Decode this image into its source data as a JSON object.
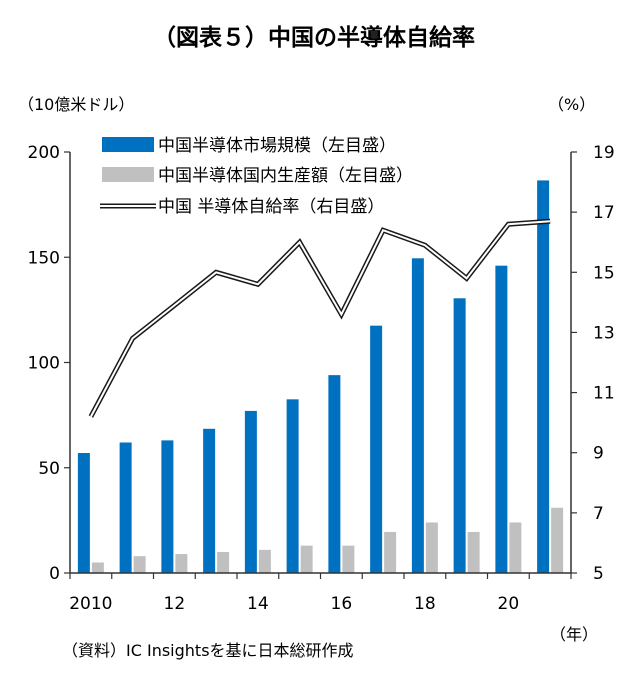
{
  "chart_data": {
    "type": "bar",
    "title": "（図表５）中国の半導体自給率",
    "left_unit": "（10億米ドル）",
    "right_unit": "（%）",
    "x_unit": "（年）",
    "source": "（資料）IC Insightsを基に日本総研作成",
    "years": [
      2010,
      2011,
      2012,
      2013,
      2014,
      2015,
      2016,
      2017,
      2018,
      2019,
      2020,
      2021
    ],
    "x_tick_labels": [
      {
        "year": 2010,
        "label": "2010"
      },
      {
        "year": 2012,
        "label": "12"
      },
      {
        "year": 2014,
        "label": "14"
      },
      {
        "year": 2016,
        "label": "16"
      },
      {
        "year": 2018,
        "label": "18"
      },
      {
        "year": 2020,
        "label": "20"
      }
    ],
    "y_left": {
      "min": 0,
      "max": 200,
      "ticks": [
        0,
        50,
        100,
        150,
        200
      ]
    },
    "y_right": {
      "min": 5,
      "max": 19,
      "ticks": [
        5,
        7,
        9,
        11,
        13,
        15,
        17,
        19
      ]
    },
    "series": [
      {
        "name": "中国半導体市場規模（左目盛）",
        "kind": "bar",
        "axis": "left",
        "color": "#0070c0",
        "values": [
          57,
          62,
          63,
          68.5,
          77,
          82.5,
          94,
          117.5,
          149.5,
          130.5,
          146,
          186.5
        ]
      },
      {
        "name": "中国半導体国内生産額（左目盛）",
        "kind": "bar",
        "axis": "left",
        "color": "#c0c0c0",
        "values": [
          5,
          8,
          9,
          10,
          11,
          13,
          13,
          19.5,
          24,
          19.5,
          24,
          31
        ]
      },
      {
        "name": "中国 半導体自給率（右目盛）",
        "kind": "line",
        "axis": "right",
        "color": "#1a1a1a",
        "values": [
          10.2,
          12.8,
          13.9,
          15.0,
          14.6,
          16.0,
          13.6,
          16.4,
          15.9,
          14.8,
          16.6,
          16.7
        ]
      }
    ],
    "grid": false,
    "legend_position": "top-left"
  }
}
